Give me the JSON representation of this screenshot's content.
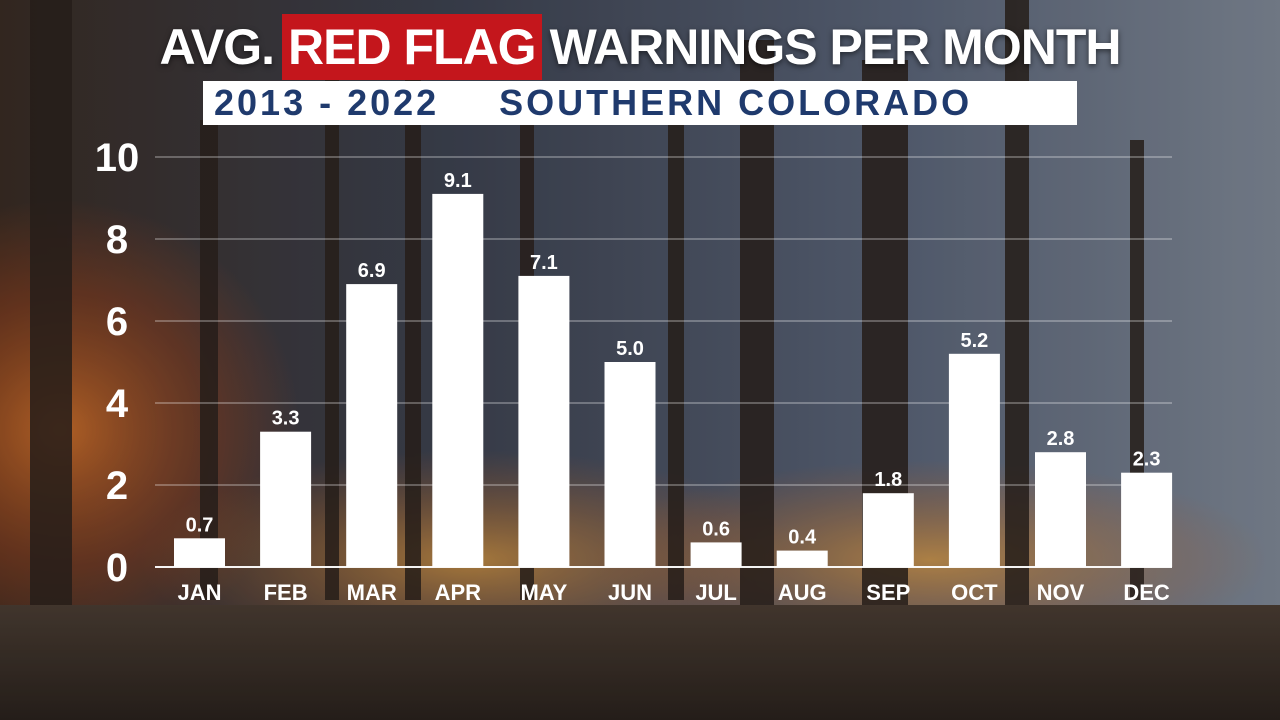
{
  "title": {
    "prefix": "AVG.",
    "highlight": "RED FLAG",
    "suffix": "WARNINGS PER MONTH"
  },
  "subtitle": {
    "years": "2013 - 2022",
    "region": "SOUTHERN COLORADO"
  },
  "colors": {
    "highlight": "#c4161c",
    "subtitle_text": "#1f3a6d",
    "bars": "#ffffff"
  },
  "chart_data": {
    "type": "bar",
    "categories": [
      "JAN",
      "FEB",
      "MAR",
      "APR",
      "MAY",
      "JUN",
      "JUL",
      "AUG",
      "SEP",
      "OCT",
      "NOV",
      "DEC"
    ],
    "values": [
      0.7,
      3.3,
      6.9,
      9.1,
      7.1,
      5.0,
      0.6,
      0.4,
      1.8,
      5.2,
      2.8,
      2.3
    ],
    "value_labels": [
      "0.7",
      "3.3",
      "6.9",
      "9.1",
      "7.1",
      "5.0",
      "0.6",
      "0.4",
      "1.8",
      "5.2",
      "2.8",
      "2.3"
    ],
    "yticks": [
      0,
      2,
      4,
      6,
      8,
      10
    ],
    "ylim": [
      0,
      10
    ],
    "grid": true,
    "legend": "none",
    "xlabel": "",
    "ylabel": ""
  }
}
